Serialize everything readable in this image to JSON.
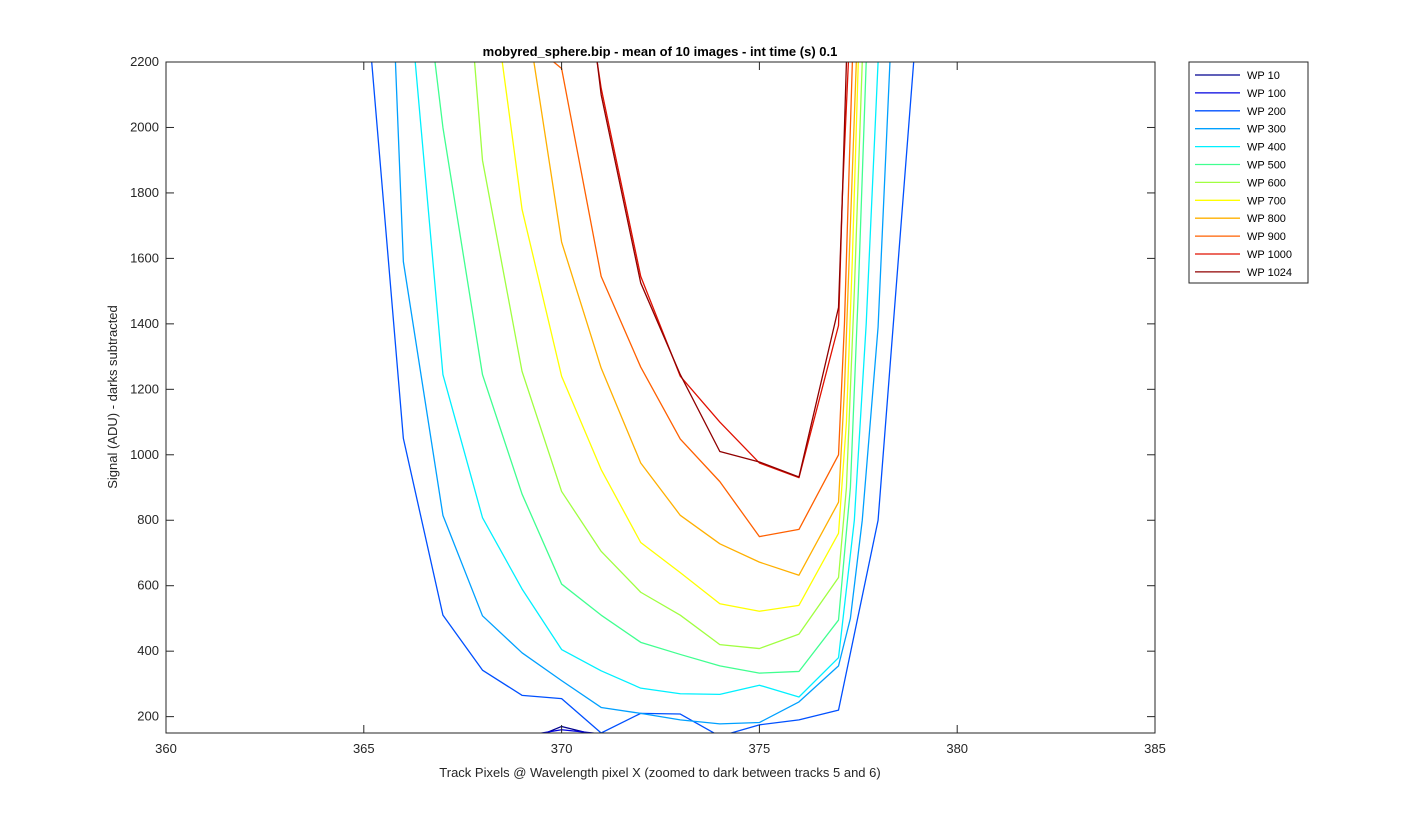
{
  "chart_data": {
    "type": "line",
    "title": "mobyred_sphere.bip - mean of 10 images - int time (s) 0.1",
    "xlabel": "Track Pixels @ Wavelength pixel X  (zoomed to dark between tracks 5 and 6)",
    "ylabel": "Signal (ADU) - darks subtracted",
    "xlim": [
      360,
      385
    ],
    "ylim": [
      150,
      2200
    ],
    "xticks": [
      360,
      365,
      370,
      375,
      380,
      385
    ],
    "yticks": [
      200,
      400,
      600,
      800,
      1000,
      1200,
      1400,
      1600,
      1800,
      2000,
      2200
    ],
    "grid": false,
    "legend_position": "outside-top-right",
    "series": [
      {
        "name": "WP 10",
        "color": "#00008F",
        "x": [
          369.5,
          370,
          370.5,
          371
        ],
        "y": [
          145,
          170,
          155,
          140
        ]
      },
      {
        "name": "WP 100",
        "color": "#0000DF",
        "x": [
          369,
          370,
          370.8,
          371.5
        ],
        "y": [
          140,
          160,
          150,
          140
        ]
      },
      {
        "name": "WP 200",
        "color": "#0050FF",
        "x": [
          365.2,
          366,
          367,
          368,
          369,
          370,
          371,
          372,
          373,
          374,
          375,
          376,
          377,
          378,
          378.9
        ],
        "y": [
          2200,
          1050,
          510,
          342,
          265,
          255,
          150,
          210,
          208,
          140,
          175,
          190,
          220,
          800,
          2200
        ]
      },
      {
        "name": "WP 300",
        "color": "#00A0FF",
        "x": [
          365.8,
          366,
          367,
          368,
          369,
          370,
          371,
          372,
          373,
          374,
          375,
          376,
          377,
          377.3,
          377.6,
          378,
          378.3
        ],
        "y": [
          2200,
          1590,
          815,
          508,
          395,
          310,
          228,
          210,
          190,
          178,
          182,
          245,
          355,
          500,
          800,
          1390,
          2200
        ]
      },
      {
        "name": "WP 400",
        "color": "#00F0FF",
        "x": [
          366.3,
          367,
          368,
          369,
          370,
          371,
          372,
          373,
          374,
          375,
          376,
          377,
          377.4,
          377.7,
          378
        ],
        "y": [
          2200,
          1245,
          808,
          590,
          405,
          340,
          287,
          270,
          268,
          296,
          260,
          380,
          800,
          1400,
          2200
        ]
      },
      {
        "name": "WP 500",
        "color": "#40FF90",
        "x": [
          366.8,
          367,
          368,
          369,
          370,
          371,
          372,
          373,
          374,
          375,
          376,
          377,
          377.3,
          377.5,
          377.7
        ],
        "y": [
          2200,
          2000,
          1245,
          880,
          605,
          510,
          427,
          390,
          355,
          333,
          338,
          495,
          900,
          1500,
          2200
        ]
      },
      {
        "name": "WP 600",
        "color": "#A0FF40",
        "x": [
          367.8,
          368,
          369,
          370,
          371,
          372,
          373,
          374,
          375,
          376,
          377,
          377.2,
          377.4,
          377.6
        ],
        "y": [
          2200,
          1900,
          1255,
          888,
          705,
          580,
          510,
          420,
          408,
          452,
          625,
          900,
          1500,
          2200
        ]
      },
      {
        "name": "WP 700",
        "color": "#FFFF00",
        "x": [
          368.5,
          369,
          370,
          371,
          372,
          373,
          374,
          375,
          376,
          377,
          377.2,
          377.35,
          377.5
        ],
        "y": [
          2200,
          1750,
          1240,
          955,
          732,
          640,
          545,
          522,
          540,
          760,
          1100,
          1600,
          2200
        ]
      },
      {
        "name": "WP 800",
        "color": "#FFB000",
        "x": [
          369.3,
          370,
          371,
          372,
          373,
          374,
          375,
          376,
          377,
          377.15,
          377.3,
          377.45
        ],
        "y": [
          2200,
          1650,
          1265,
          975,
          815,
          728,
          672,
          632,
          855,
          1200,
          1700,
          2200
        ]
      },
      {
        "name": "WP 900",
        "color": "#FF6000",
        "x": [
          369.8,
          370,
          371,
          372,
          373,
          374,
          375,
          376,
          377,
          377.15,
          377.25,
          377.35
        ],
        "y": [
          2200,
          2180,
          1545,
          1268,
          1048,
          918,
          750,
          772,
          1000,
          1400,
          1800,
          2200
        ]
      },
      {
        "name": "WP 1000",
        "color": "#E01000",
        "x": [
          370.9,
          371,
          372,
          373,
          374,
          375,
          376,
          377,
          377.1,
          377.25
        ],
        "y": [
          2200,
          2120,
          1545,
          1240,
          1100,
          975,
          930,
          1395,
          1800,
          2200
        ]
      },
      {
        "name": "WP 1024",
        "color": "#900000",
        "x": [
          370.9,
          371,
          372,
          373,
          374,
          375,
          376,
          377,
          377.1,
          377.2
        ],
        "y": [
          2200,
          2100,
          1525,
          1245,
          1010,
          978,
          932,
          1450,
          1800,
          2200
        ]
      }
    ]
  }
}
